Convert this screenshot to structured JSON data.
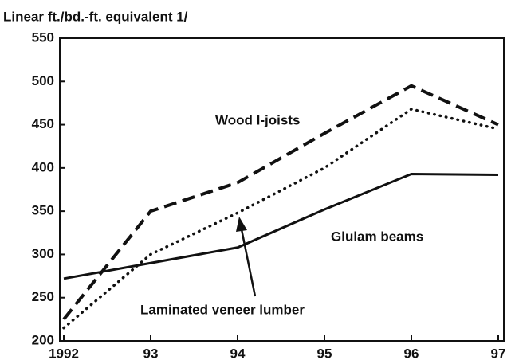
{
  "chart_data": {
    "type": "line",
    "y_label": "Linear ft./bd.-ft. equivalent 1/",
    "categories": [
      "1992",
      "93",
      "94",
      "95",
      "96",
      "97"
    ],
    "series": [
      {
        "name": "Wood I-joists",
        "color": "#111111",
        "style": "dashed",
        "values": [
          225,
          350,
          383,
          440,
          495,
          450
        ]
      },
      {
        "name": "Laminated veneer lumber",
        "color": "#111111",
        "style": "dotted",
        "values": [
          215,
          300,
          348,
          400,
          468,
          445
        ]
      },
      {
        "name": "Glulam beams",
        "color": "#111111",
        "style": "solid",
        "values": [
          272,
          290,
          308,
          352,
          393,
          392
        ]
      }
    ],
    "ylim": [
      200,
      550
    ],
    "yticks": [
      200,
      250,
      300,
      350,
      400,
      450,
      500,
      550
    ],
    "grid": false
  }
}
